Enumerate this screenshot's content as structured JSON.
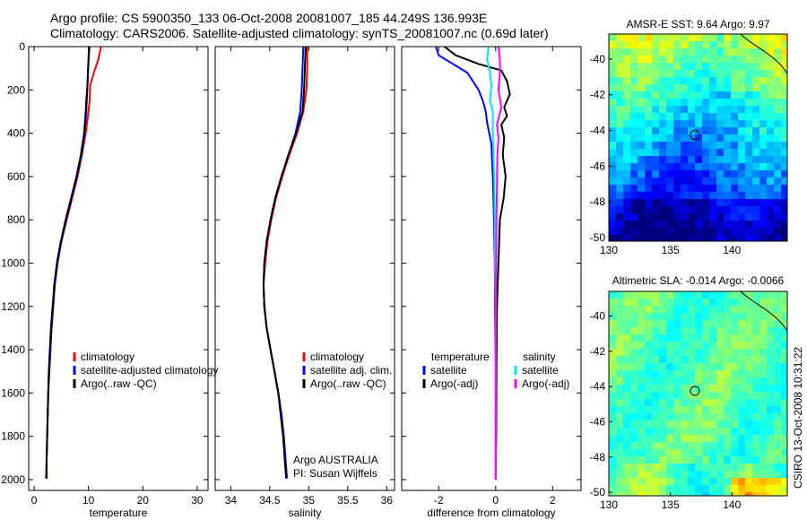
{
  "header": {
    "line1": "Argo profile: CS 5900350_133 06-Oct-2008 20081007_185 44.249S 136.993E",
    "line2": "Climatology: CARS2006. Satellite-adjusted climatology: synTS_20081007.nc (0.69d later)"
  },
  "side_label": "CSIRO 13-Oct-2008 10:31:22",
  "colors": {
    "climatology": "#ff0000",
    "satellite": "#0000ff",
    "argo": "#000000",
    "sat_sal": "#00e5ee",
    "argo_sal": "#ff00ff"
  },
  "chart_data": [
    {
      "type": "line",
      "id": "temperature",
      "xlabel": "temperature",
      "ylabel": "",
      "xlim": [
        -1,
        32
      ],
      "ylim": [
        2050,
        0
      ],
      "xticks": [
        "0",
        "10",
        "20",
        "30"
      ],
      "xtick_values": [
        0,
        10,
        20,
        30
      ],
      "yticks": [
        "0",
        "200",
        "400",
        "600",
        "800",
        "1000",
        "1200",
        "1400",
        "1600",
        "1800",
        "2000"
      ],
      "ytick_values": [
        0,
        200,
        400,
        600,
        800,
        1000,
        1200,
        1400,
        1600,
        1800,
        2000
      ],
      "legend": [
        "climatology",
        "satellite-adjusted climatology",
        "Argo(..raw -QC)"
      ],
      "series": [
        {
          "name": "climatology",
          "color": "#ff0000",
          "points": [
            [
              12.3,
              0
            ],
            [
              11.8,
              60
            ],
            [
              11.0,
              120
            ],
            [
              10.3,
              180
            ],
            [
              10.2,
              250
            ],
            [
              10.0,
              300
            ],
            [
              9.5,
              400
            ],
            [
              8.8,
              500
            ],
            [
              8.0,
              600
            ],
            [
              7.0,
              700
            ],
            [
              6.0,
              800
            ],
            [
              5.0,
              900
            ],
            [
              4.3,
              1000
            ],
            [
              3.8,
              1100
            ],
            [
              3.5,
              1200
            ],
            [
              3.2,
              1300
            ],
            [
              3.0,
              1400
            ],
            [
              2.8,
              1500
            ],
            [
              2.6,
              1600
            ],
            [
              2.5,
              1700
            ],
            [
              2.4,
              1800
            ],
            [
              2.3,
              1900
            ],
            [
              2.3,
              1995
            ]
          ]
        },
        {
          "name": "satellite-adjusted climatology",
          "color": "#0000ff",
          "points": [
            [
              10.2,
              0
            ],
            [
              10.0,
              60
            ],
            [
              9.9,
              120
            ],
            [
              9.8,
              180
            ],
            [
              9.7,
              250
            ],
            [
              9.6,
              300
            ],
            [
              9.3,
              400
            ],
            [
              8.7,
              500
            ],
            [
              7.9,
              600
            ],
            [
              6.9,
              700
            ],
            [
              5.9,
              800
            ],
            [
              5.0,
              900
            ],
            [
              4.3,
              1000
            ],
            [
              3.8,
              1100
            ],
            [
              3.5,
              1200
            ],
            [
              3.2,
              1300
            ],
            [
              3.0,
              1400
            ],
            [
              2.8,
              1500
            ],
            [
              2.6,
              1600
            ],
            [
              2.5,
              1700
            ],
            [
              2.4,
              1800
            ],
            [
              2.3,
              1900
            ],
            [
              2.3,
              1995
            ]
          ]
        },
        {
          "name": "Argo(..raw -QC)",
          "color": "#000000",
          "points": [
            [
              10.1,
              0
            ],
            [
              10.0,
              60
            ],
            [
              9.9,
              120
            ],
            [
              9.8,
              180
            ],
            [
              9.6,
              250
            ],
            [
              9.5,
              300
            ],
            [
              9.2,
              400
            ],
            [
              8.6,
              500
            ],
            [
              7.8,
              600
            ],
            [
              6.8,
              700
            ],
            [
              5.8,
              800
            ],
            [
              4.9,
              900
            ],
            [
              4.2,
              1000
            ],
            [
              3.7,
              1100
            ],
            [
              3.4,
              1200
            ],
            [
              3.1,
              1300
            ],
            [
              2.9,
              1400
            ],
            [
              2.7,
              1500
            ],
            [
              2.6,
              1600
            ],
            [
              2.5,
              1700
            ],
            [
              2.4,
              1800
            ],
            [
              2.3,
              1900
            ],
            [
              2.2,
              1995
            ]
          ]
        }
      ]
    },
    {
      "type": "line",
      "id": "salinity",
      "xlabel": "salinity",
      "xlim": [
        33.8,
        36.1
      ],
      "ylim": [
        2050,
        0
      ],
      "xticks": [
        "34",
        "34.5",
        "35",
        "35.5",
        "36"
      ],
      "xtick_values": [
        34,
        34.5,
        35,
        35.5,
        36
      ],
      "legend": [
        "climatology",
        "satellite adj. clim.",
        "Argo(..raw -QC)"
      ],
      "annotation": [
        "Argo AUSTRALIA",
        "PI: Susan Wijffels"
      ],
      "series": [
        {
          "name": "climatology",
          "color": "#ff0000",
          "points": [
            [
              34.98,
              0
            ],
            [
              34.98,
              100
            ],
            [
              34.97,
              200
            ],
            [
              34.93,
              300
            ],
            [
              34.85,
              400
            ],
            [
              34.75,
              500
            ],
            [
              34.66,
              600
            ],
            [
              34.58,
              700
            ],
            [
              34.52,
              800
            ],
            [
              34.47,
              900
            ],
            [
              34.44,
              1000
            ],
            [
              34.42,
              1100
            ],
            [
              34.43,
              1200
            ],
            [
              34.46,
              1300
            ],
            [
              34.51,
              1400
            ],
            [
              34.56,
              1500
            ],
            [
              34.61,
              1600
            ],
            [
              34.65,
              1700
            ],
            [
              34.68,
              1800
            ],
            [
              34.7,
              1900
            ],
            [
              34.72,
              1995
            ]
          ]
        },
        {
          "name": "satellite adj. clim.",
          "color": "#0000ff",
          "points": [
            [
              34.93,
              0
            ],
            [
              34.92,
              100
            ],
            [
              34.91,
              200
            ],
            [
              34.89,
              300
            ],
            [
              34.83,
              400
            ],
            [
              34.74,
              500
            ],
            [
              34.65,
              600
            ],
            [
              34.57,
              700
            ],
            [
              34.51,
              800
            ],
            [
              34.46,
              900
            ],
            [
              34.43,
              1000
            ],
            [
              34.42,
              1100
            ],
            [
              34.43,
              1200
            ],
            [
              34.46,
              1300
            ],
            [
              34.51,
              1400
            ],
            [
              34.56,
              1500
            ],
            [
              34.61,
              1600
            ],
            [
              34.65,
              1700
            ],
            [
              34.68,
              1800
            ],
            [
              34.7,
              1900
            ],
            [
              34.72,
              1995
            ]
          ]
        },
        {
          "name": "Argo(..raw -QC)",
          "color": "#000000",
          "points": [
            [
              34.96,
              0
            ],
            [
              34.95,
              100
            ],
            [
              34.94,
              200
            ],
            [
              34.92,
              300
            ],
            [
              34.84,
              400
            ],
            [
              34.74,
              500
            ],
            [
              34.65,
              600
            ],
            [
              34.57,
              700
            ],
            [
              34.51,
              800
            ],
            [
              34.46,
              900
            ],
            [
              34.43,
              1000
            ],
            [
              34.42,
              1100
            ],
            [
              34.43,
              1200
            ],
            [
              34.46,
              1300
            ],
            [
              34.51,
              1400
            ],
            [
              34.56,
              1500
            ],
            [
              34.61,
              1600
            ],
            [
              34.64,
              1700
            ],
            [
              34.67,
              1800
            ],
            [
              34.69,
              1900
            ],
            [
              34.71,
              1995
            ]
          ]
        }
      ]
    },
    {
      "type": "line",
      "id": "difference",
      "xlabel": "difference from climatology",
      "xlim": [
        -3.3,
        3.0
      ],
      "ylim": [
        2050,
        0
      ],
      "xticks": [
        "-2",
        "0",
        "2"
      ],
      "xtick_values": [
        -2,
        0,
        2
      ],
      "legend_left": [
        "temperature",
        "satellite",
        "Argo(-adj)"
      ],
      "legend_right": [
        "salinity",
        "satellite",
        "Argo(-adj)"
      ],
      "series": [
        {
          "name": "temperature satellite",
          "color": "#0000ff",
          "points": [
            [
              -2.1,
              0
            ],
            [
              -2.0,
              40
            ],
            [
              -1.5,
              80
            ],
            [
              -1.0,
              120
            ],
            [
              -0.8,
              160
            ],
            [
              -0.6,
              200
            ],
            [
              -0.45,
              250
            ],
            [
              -0.35,
              300
            ],
            [
              -0.3,
              350
            ],
            [
              -0.15,
              450
            ],
            [
              -0.1,
              600
            ],
            [
              -0.06,
              800
            ],
            [
              -0.03,
              1000
            ],
            [
              -0.02,
              1200
            ],
            [
              0,
              1500
            ],
            [
              0,
              1700
            ],
            [
              0,
              2000
            ]
          ]
        },
        {
          "name": "temperature Argo(-adj)",
          "color": "#000000",
          "points": [
            [
              -1.8,
              0
            ],
            [
              -1.4,
              40
            ],
            [
              -0.6,
              80
            ],
            [
              0.2,
              110
            ],
            [
              0.4,
              160
            ],
            [
              0.5,
              220
            ],
            [
              0.3,
              280
            ],
            [
              0.4,
              320
            ],
            [
              0.2,
              360
            ],
            [
              0.3,
              420
            ],
            [
              0.25,
              500
            ],
            [
              0.35,
              600
            ],
            [
              0.28,
              700
            ],
            [
              0.15,
              800
            ],
            [
              0.1,
              1000
            ],
            [
              0.05,
              1200
            ],
            [
              0.03,
              1500
            ],
            [
              0.02,
              1800
            ],
            [
              0,
              2000
            ]
          ]
        },
        {
          "name": "salinity satellite",
          "color": "#00e5ee",
          "points": [
            [
              -0.25,
              0
            ],
            [
              -0.3,
              60
            ],
            [
              -0.2,
              120
            ],
            [
              -0.15,
              180
            ],
            [
              -0.2,
              250
            ],
            [
              -0.1,
              300
            ],
            [
              -0.1,
              400
            ],
            [
              -0.08,
              500
            ],
            [
              -0.05,
              600
            ],
            [
              -0.03,
              800
            ],
            [
              -0.02,
              1000
            ],
            [
              0,
              1200
            ],
            [
              0,
              1500
            ],
            [
              0,
              2000
            ]
          ]
        },
        {
          "name": "salinity Argo(-adj)",
          "color": "#ff00ff",
          "points": [
            [
              0.1,
              0
            ],
            [
              0.15,
              60
            ],
            [
              0.15,
              120
            ],
            [
              0.1,
              200
            ],
            [
              0.2,
              280
            ],
            [
              0.05,
              360
            ],
            [
              0.1,
              420
            ],
            [
              0.06,
              500
            ],
            [
              0.05,
              600
            ],
            [
              0.03,
              800
            ],
            [
              0.02,
              1000
            ],
            [
              0.01,
              1200
            ],
            [
              0.01,
              1500
            ],
            [
              0,
              2000
            ]
          ]
        }
      ]
    },
    {
      "type": "heatmap",
      "id": "sst-map",
      "title": "AMSR-E SST: 9.64 Argo: 9.97",
      "xlim": [
        130,
        144.5
      ],
      "ylim": [
        -50.2,
        -38.6
      ],
      "xticks": [
        "130",
        "135",
        "140"
      ],
      "xtick_values": [
        130,
        135,
        140
      ],
      "yticks": [
        "-40",
        "-42",
        "-44",
        "-46",
        "-48",
        "-50"
      ],
      "ytick_values": [
        -40,
        -42,
        -44,
        -46,
        -48,
        -50
      ],
      "marker": [
        136.993,
        -44.249
      ]
    },
    {
      "type": "heatmap",
      "id": "sla-map",
      "title": "Altimetric SLA: -0.014 Argo: -0.0066",
      "xlim": [
        130,
        144.5
      ],
      "ylim": [
        -50.2,
        -38.6
      ],
      "xticks": [
        "130",
        "135",
        "140"
      ],
      "xtick_values": [
        130,
        135,
        140
      ],
      "yticks": [
        "-40",
        "-42",
        "-44",
        "-46",
        "-48",
        "-50"
      ],
      "ytick_values": [
        -40,
        -42,
        -44,
        -46,
        -48,
        -50
      ],
      "marker": [
        136.993,
        -44.249
      ]
    }
  ]
}
